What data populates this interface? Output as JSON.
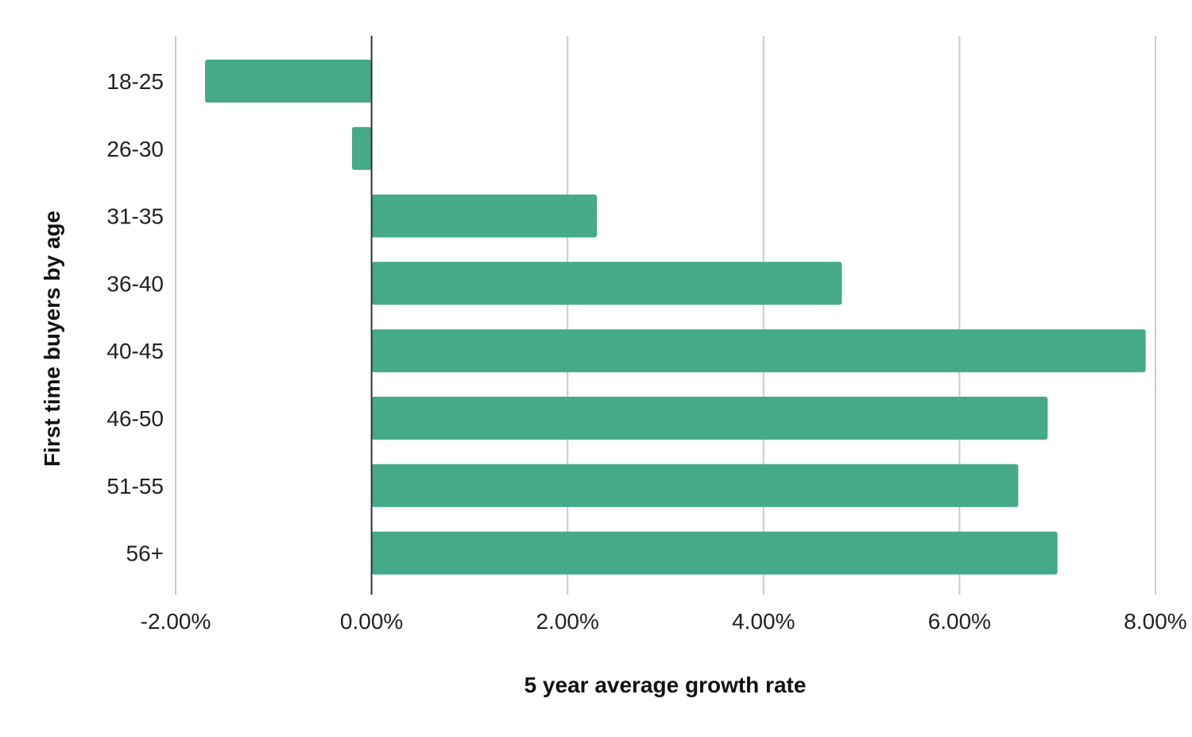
{
  "chart_data": {
    "type": "bar",
    "orientation": "horizontal",
    "categories": [
      "18-25",
      "26-30",
      "31-35",
      "36-40",
      "40-45",
      "46-50",
      "51-55",
      "56+"
    ],
    "values": [
      -1.7,
      -0.2,
      2.3,
      4.8,
      7.9,
      6.9,
      6.6,
      7.0
    ],
    "value_format": "percent_2dp",
    "xlabel": "5 year average growth rate",
    "ylabel": "First time buyers by age",
    "xlim": [
      -2,
      8
    ],
    "xticks": [
      -2,
      0,
      2,
      4,
      6,
      8
    ],
    "xtick_labels": [
      "-2.00%",
      "0.00%",
      "2.00%",
      "4.00%",
      "6.00%",
      "8.00%"
    ],
    "grid": true,
    "legend": "none",
    "colors": {
      "bar": "#45AA89",
      "grid": "#cccccc",
      "zero_line": "#333333"
    }
  }
}
